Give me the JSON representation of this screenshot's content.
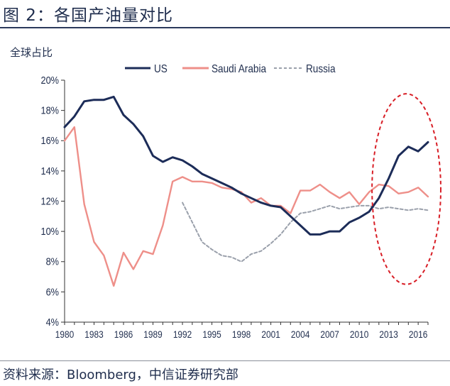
{
  "figure": {
    "title": "图 2：各国产油量对比",
    "source": "资料来源：Bloomberg，中信证券研究部"
  },
  "chart_data": {
    "type": "line",
    "ylabel": "全球占比",
    "xlabel": "",
    "ylim": [
      4,
      20
    ],
    "xlim": [
      1980,
      2017
    ],
    "y_ticks": [
      "4%",
      "6%",
      "8%",
      "10%",
      "12%",
      "14%",
      "16%",
      "18%",
      "20%"
    ],
    "x_ticks": [
      "1980",
      "1983",
      "1986",
      "1989",
      "1992",
      "1995",
      "1998",
      "2001",
      "2004",
      "2007",
      "2010",
      "2013",
      "2016"
    ],
    "legend_position": "top",
    "series": [
      {
        "name": "US",
        "color": "#1c2c58",
        "style": "solid",
        "x": [
          1980,
          1981,
          1982,
          1983,
          1984,
          1985,
          1986,
          1987,
          1988,
          1989,
          1990,
          1991,
          1992,
          1993,
          1994,
          1995,
          1996,
          1997,
          1998,
          1999,
          2000,
          2001,
          2002,
          2003,
          2004,
          2005,
          2006,
          2007,
          2008,
          2009,
          2010,
          2011,
          2012,
          2013,
          2014,
          2015,
          2016,
          2017
        ],
        "values": [
          16.9,
          17.6,
          18.6,
          18.7,
          18.7,
          18.9,
          17.7,
          17.1,
          16.3,
          15.0,
          14.6,
          14.9,
          14.7,
          14.3,
          13.8,
          13.5,
          13.2,
          12.9,
          12.5,
          12.2,
          11.9,
          11.7,
          11.6,
          11.0,
          10.4,
          9.8,
          9.8,
          10.0,
          10.0,
          10.6,
          10.9,
          11.3,
          12.2,
          13.5,
          15.0,
          15.6,
          15.3,
          15.9
        ]
      },
      {
        "name": "Saudi Arabia",
        "color": "#ee8f89",
        "style": "solid",
        "x": [
          1980,
          1981,
          1982,
          1983,
          1984,
          1985,
          1986,
          1987,
          1988,
          1989,
          1990,
          1991,
          1992,
          1993,
          1994,
          1995,
          1996,
          1997,
          1998,
          1999,
          2000,
          2001,
          2002,
          2003,
          2004,
          2005,
          2006,
          2007,
          2008,
          2009,
          2010,
          2011,
          2012,
          2013,
          2014,
          2015,
          2016,
          2017
        ],
        "values": [
          16.0,
          16.9,
          11.8,
          9.3,
          8.4,
          6.4,
          8.6,
          7.5,
          8.7,
          8.5,
          10.4,
          13.3,
          13.6,
          13.3,
          13.3,
          13.2,
          12.9,
          12.8,
          12.6,
          11.9,
          12.2,
          11.7,
          11.7,
          11.2,
          12.7,
          12.7,
          13.1,
          12.6,
          12.2,
          12.6,
          11.8,
          12.6,
          13.1,
          13.0,
          12.5,
          12.6,
          12.9,
          12.3
        ]
      },
      {
        "name": "Russia",
        "color": "#9aa0ab",
        "style": "dashed",
        "x": [
          1992,
          1993,
          1994,
          1995,
          1996,
          1997,
          1998,
          1999,
          2000,
          2001,
          2002,
          2003,
          2004,
          2005,
          2006,
          2007,
          2008,
          2009,
          2010,
          2011,
          2012,
          2013,
          2014,
          2015,
          2016,
          2017
        ],
        "values": [
          11.9,
          10.6,
          9.3,
          8.8,
          8.4,
          8.3,
          8.0,
          8.5,
          8.7,
          9.2,
          9.8,
          10.6,
          11.2,
          11.3,
          11.5,
          11.7,
          11.5,
          11.6,
          11.7,
          11.7,
          11.5,
          11.6,
          11.5,
          11.4,
          11.5,
          11.4
        ]
      }
    ],
    "annotations": [
      {
        "type": "ellipse",
        "x_range": [
          2011.3,
          2018.3
        ],
        "y_range": [
          6.5,
          19.1
        ],
        "color": "#d81e26",
        "style": "dashed"
      }
    ]
  }
}
